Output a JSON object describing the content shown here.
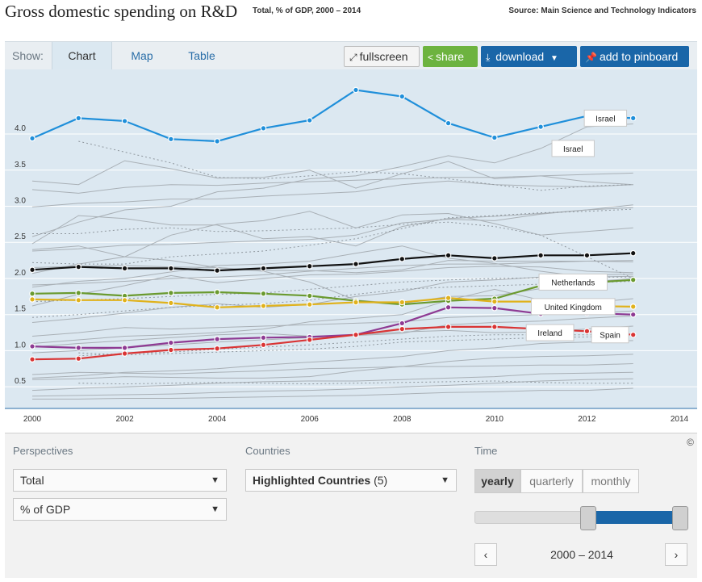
{
  "header": {
    "title": "Gross domestic spending on R&D",
    "subtitle": "Total, % of GDP, 2000 – 2014",
    "source": "Source: Main Science and Technology Indicators"
  },
  "toolbar": {
    "show_label": "Show:",
    "tabs": [
      {
        "label": "Chart",
        "active": true
      },
      {
        "label": "Map",
        "active": false
      },
      {
        "label": "Table",
        "active": false
      }
    ],
    "fullscreen_label": "fullscreen",
    "share_label": "share",
    "download_label": "download",
    "pin_label": "add to pinboard"
  },
  "colors": {
    "plot_bg": "#dce8f1",
    "israel": "#1f8fda",
    "oecd": "#111111",
    "netherlands": "#6a9a2f",
    "uk": "#e0b21c",
    "ireland": "#8e3a93",
    "spain": "#d93434",
    "background_lines": "#a9b0b6",
    "share": "#6db33f",
    "primary_button": "#1a66a8"
  },
  "chart_data": {
    "type": "line",
    "x": [
      2000,
      2001,
      2002,
      2003,
      2004,
      2005,
      2006,
      2007,
      2008,
      2009,
      2010,
      2011,
      2012,
      2013
    ],
    "xlim": [
      2000,
      2014
    ],
    "x_ticks": [
      "2000",
      "2002",
      "2004",
      "2006",
      "2008",
      "2010",
      "2012",
      "2014"
    ],
    "ylim": [
      0.2,
      4.85
    ],
    "y_ticks": [
      "0.5",
      "1.0",
      "1.5",
      "2.0",
      "2.5",
      "3.0",
      "3.5",
      "4.0"
    ],
    "grid": true,
    "legend": "inline labels",
    "series": [
      {
        "name": "Israel",
        "values": [
          3.94,
          4.22,
          4.18,
          3.93,
          3.9,
          4.08,
          4.19,
          4.61,
          4.52,
          4.15,
          3.95,
          4.1,
          4.25,
          4.22
        ]
      },
      {
        "name": "",
        "values": [
          2.12,
          2.16,
          2.14,
          2.14,
          2.11,
          2.14,
          2.17,
          2.2,
          2.27,
          2.32,
          2.28,
          2.32,
          2.32,
          2.35
        ]
      },
      {
        "name": "Netherlands",
        "values": [
          1.79,
          1.8,
          1.76,
          1.8,
          1.81,
          1.79,
          1.76,
          1.69,
          1.64,
          1.69,
          1.72,
          1.9,
          1.94,
          1.98
        ]
      },
      {
        "name": "United Kingdom",
        "values": [
          1.71,
          1.7,
          1.7,
          1.66,
          1.6,
          1.62,
          1.64,
          1.67,
          1.67,
          1.73,
          1.68,
          1.68,
          1.62,
          1.61
        ]
      },
      {
        "name": "Ireland",
        "values": [
          1.06,
          1.04,
          1.04,
          1.11,
          1.16,
          1.18,
          1.19,
          1.22,
          1.38,
          1.6,
          1.59,
          1.51,
          1.52,
          1.5
        ]
      },
      {
        "name": "Spain",
        "values": [
          0.88,
          0.89,
          0.96,
          1.01,
          1.03,
          1.08,
          1.15,
          1.22,
          1.3,
          1.33,
          1.33,
          1.3,
          1.27,
          1.22
        ]
      }
    ],
    "background_series": [
      [
        3.23,
        3.18,
        3.26,
        3.3,
        3.29,
        3.32,
        3.34,
        3.36,
        3.38,
        3.4,
        3.4,
        3.42,
        3.44,
        3.46
      ],
      [
        2.99,
        3.04,
        3.06,
        3.1,
        3.1,
        3.14,
        3.17,
        3.2,
        3.3,
        3.35,
        3.3,
        3.28,
        3.27,
        3.3
      ],
      [
        3.35,
        3.3,
        3.63,
        3.52,
        3.39,
        3.4,
        3.5,
        3.25,
        3.45,
        3.62,
        3.38,
        3.42,
        3.34,
        3.3
      ],
      [
        2.58,
        2.78,
        2.95,
        3.0,
        3.2,
        3.25,
        3.38,
        3.42,
        3.55,
        3.7,
        3.6,
        3.8,
        4.1,
        4.14
      ],
      [
        2.38,
        2.41,
        2.46,
        2.47,
        2.5,
        2.52,
        2.54,
        2.6,
        2.77,
        2.82,
        2.8,
        2.89,
        2.95,
        2.98
      ],
      [
        2.48,
        2.87,
        2.83,
        2.74,
        2.74,
        2.55,
        2.58,
        2.45,
        2.72,
        2.83,
        2.86,
        2.9,
        2.95,
        3.02
      ],
      [
        2.07,
        2.2,
        2.3,
        2.6,
        2.75,
        2.8,
        2.93,
        2.7,
        2.88,
        2.9,
        2.76,
        2.6,
        2.65,
        2.7
      ],
      [
        1.91,
        1.93,
        1.96,
        2.0,
        2.02,
        2.05,
        2.1,
        2.14,
        2.18,
        2.2,
        2.2,
        2.22,
        2.24,
        2.25
      ],
      [
        2.15,
        2.17,
        2.18,
        2.16,
        2.15,
        2.11,
        2.11,
        2.08,
        2.12,
        2.25,
        2.24,
        2.24,
        2.24,
        2.23
      ],
      [
        1.88,
        1.96,
        2.0,
        2.09,
        2.18,
        2.2,
        2.24,
        2.35,
        2.45,
        2.28,
        2.21,
        2.1,
        2.02,
        2.03
      ],
      [
        1.62,
        1.78,
        1.9,
        2.04,
        1.94,
        2.0,
        2.05,
        2.06,
        2.1,
        2.15,
        2.17,
        2.16,
        2.1,
        2.08
      ],
      [
        1.39,
        1.45,
        1.52,
        1.6,
        1.65,
        1.6,
        1.64,
        1.75,
        1.82,
        1.95,
        1.98,
        2.02,
        2.05,
        2.06
      ],
      [
        2.4,
        2.45,
        2.3,
        2.25,
        2.15,
        2.1,
        1.95,
        1.7,
        1.65,
        1.75,
        1.76,
        1.86,
        1.95,
        2.0
      ],
      [
        1.1,
        1.15,
        1.2,
        1.22,
        1.25,
        1.3,
        1.4,
        1.45,
        1.5,
        1.7,
        1.85,
        1.7,
        1.66,
        1.72
      ],
      [
        1.2,
        1.25,
        1.32,
        1.3,
        1.32,
        1.34,
        1.36,
        1.38,
        1.4,
        1.46,
        1.48,
        1.5,
        1.52,
        1.55
      ],
      [
        1.05,
        1.1,
        1.14,
        1.18,
        1.22,
        1.24,
        1.2,
        1.21,
        1.24,
        1.36,
        1.39,
        1.41,
        1.45,
        1.48
      ],
      [
        0.97,
        1.0,
        1.04,
        1.08,
        1.12,
        1.15,
        1.18,
        1.22,
        1.26,
        1.28,
        1.25,
        1.26,
        1.3,
        1.34
      ],
      [
        0.62,
        0.65,
        0.7,
        0.72,
        0.75,
        0.8,
        0.84,
        0.88,
        0.92,
        1.0,
        1.04,
        1.1,
        1.12,
        1.14
      ],
      [
        0.6,
        0.61,
        0.64,
        0.63,
        0.62,
        0.62,
        0.64,
        0.72,
        0.78,
        0.85,
        0.9,
        0.92,
        0.93,
        0.95
      ],
      [
        0.67,
        0.7,
        0.69,
        0.68,
        0.7,
        0.72,
        0.75,
        0.76,
        0.78,
        0.78,
        0.79,
        0.8,
        0.8,
        0.82
      ],
      [
        0.45,
        0.48,
        0.5,
        0.52,
        0.55,
        0.57,
        0.58,
        0.58,
        0.6,
        0.62,
        0.64,
        0.68,
        0.69,
        0.7
      ],
      [
        0.37,
        0.38,
        0.39,
        0.4,
        0.42,
        0.44,
        0.45,
        0.47,
        0.5,
        0.52,
        0.55,
        0.58,
        0.6,
        0.61
      ],
      [
        0.33,
        0.33,
        0.34,
        0.34,
        0.35,
        0.36,
        0.37,
        0.38,
        0.4,
        0.42,
        0.43,
        0.45,
        0.45,
        0.48
      ]
    ],
    "dotted_series": [
      [
        null,
        3.9,
        3.75,
        3.6,
        3.4,
        3.38,
        3.42,
        3.48,
        3.45,
        3.38,
        3.3,
        3.22,
        3.28,
        3.3
      ],
      [
        1.68,
        1.7,
        1.72,
        1.75,
        1.78,
        1.8,
        1.85,
        1.9,
        1.95,
        1.98,
        2.0,
        2.01,
        2.02,
        2.02
      ],
      [
        1.46,
        1.5,
        1.55,
        1.6,
        1.63,
        1.65,
        1.7,
        1.78,
        1.85,
        1.88,
        1.9,
        1.92,
        1.94,
        1.96
      ],
      [
        2.62,
        2.62,
        2.68,
        2.7,
        2.65,
        2.66,
        2.68,
        2.7,
        2.75,
        2.78,
        2.72,
        2.6,
        2.3,
        2.0
      ],
      [
        null,
        0.93,
        0.96,
        0.98,
        1.02,
        1.05,
        1.08,
        1.12,
        1.16,
        1.2,
        1.22,
        1.22,
        1.22,
        1.22
      ],
      [
        null,
        0.97,
        0.94,
        0.96,
        0.98,
        1.0,
        1.02,
        1.06,
        1.12,
        1.14,
        1.16,
        1.18,
        1.19,
        1.2
      ],
      [
        2.22,
        2.2,
        2.2,
        2.3,
        2.34,
        2.38,
        2.46,
        2.55,
        2.69,
        2.84,
        2.87,
        2.91,
        2.93,
        2.96
      ],
      [
        null,
        0.55,
        0.54,
        0.55,
        0.56,
        0.55,
        0.54,
        0.55,
        0.56,
        0.57,
        0.58,
        0.56,
        0.55,
        0.55
      ]
    ],
    "annotations": [
      {
        "text": "Israel",
        "x": 2012.4,
        "y": 4.22
      },
      {
        "text": "Israel",
        "x": 2011.7,
        "y": 3.8
      },
      {
        "text": "Netherlands",
        "x": 2011.7,
        "y": 1.95
      },
      {
        "text": "United Kingdom",
        "x": 2011.7,
        "y": 1.61
      },
      {
        "text": "Ireland",
        "x": 2011.2,
        "y": 1.25
      },
      {
        "text": "Spain",
        "x": 2012.5,
        "y": 1.22
      }
    ]
  },
  "controls": {
    "perspectives_label": "Perspectives",
    "perspective_value": "Total",
    "unit_value": "% of GDP",
    "countries_label": "Countries",
    "countries_value": "Highlighted Countries",
    "countries_count": "(5)",
    "time_label": "Time",
    "copyright": "©",
    "freq": {
      "yearly": "yearly",
      "quarterly": "quarterly",
      "monthly": "monthly"
    },
    "range_text": "2000 – 2014",
    "prev": "‹",
    "next": "›",
    "dropdown_arrow": "▼"
  }
}
